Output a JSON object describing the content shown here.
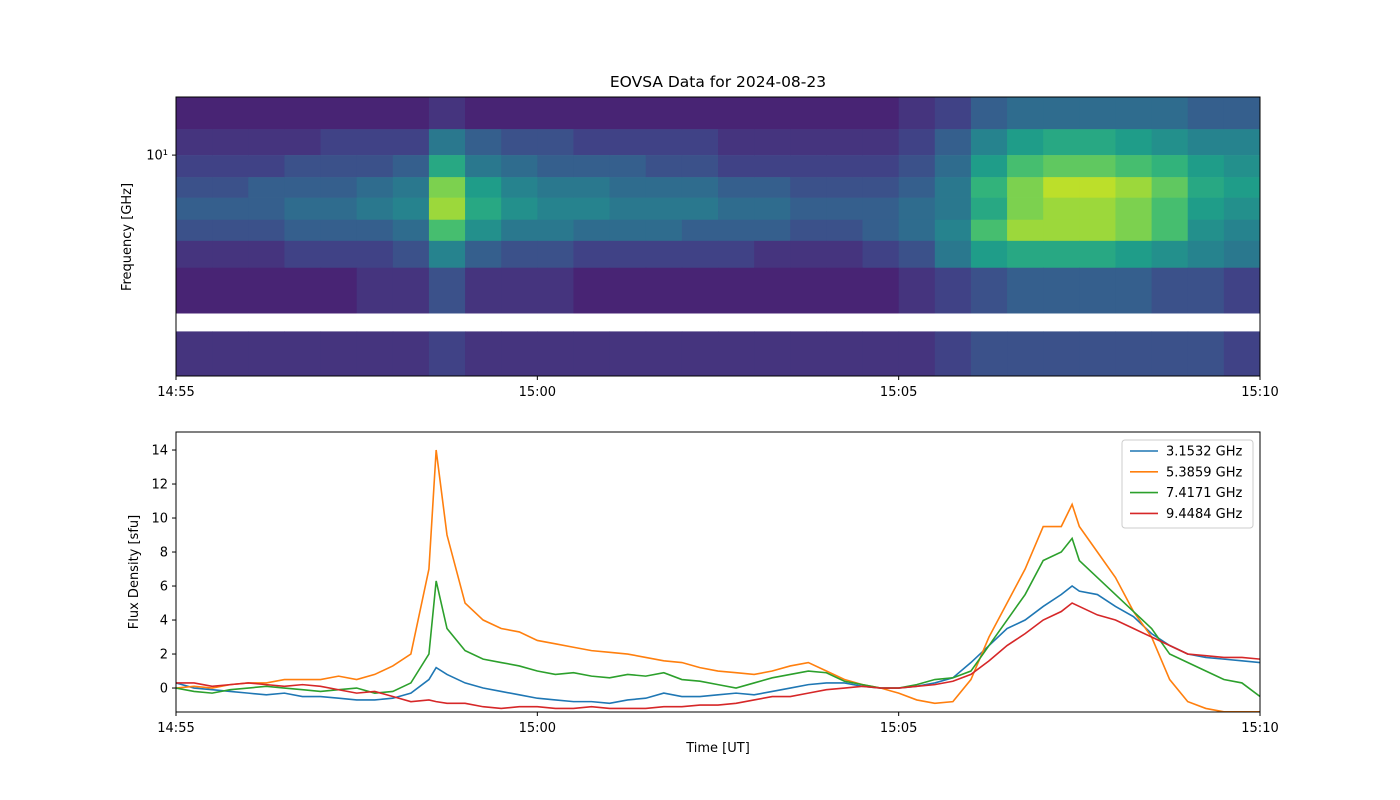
{
  "chart_data": [
    {
      "type": "heatmap",
      "title": "EOVSA Data for 2024-08-23",
      "ylabel": "Frequency [GHz]",
      "yscale": "log",
      "colormap": "viridis",
      "xlim": [
        895,
        910
      ],
      "ylim": [
        1.07,
        18
      ],
      "xticks": [
        {
          "value": 895,
          "label": "14:55"
        },
        {
          "value": 900,
          "label": "15:00"
        },
        {
          "value": 905,
          "label": "15:05"
        },
        {
          "value": 910,
          "label": "15:10"
        }
      ],
      "yticks": [
        {
          "value": 10,
          "label": "10¹"
        }
      ],
      "x": [
        895,
        895.5,
        896,
        896.5,
        897,
        897.5,
        898,
        898.5,
        899,
        899.5,
        900,
        900.5,
        901,
        901.5,
        902,
        902.5,
        903,
        903.5,
        904,
        904.5,
        905,
        905.5,
        906,
        906.5,
        907,
        907.5,
        908,
        908.5,
        909,
        909.5,
        910
      ],
      "y": [
        18,
        13,
        10,
        8,
        6.5,
        5.2,
        4.2,
        3.2,
        2.02,
        1.68,
        1.07
      ],
      "z": [
        [
          0.1,
          0.1,
          0.1,
          0.1,
          0.1,
          0.1,
          0.1,
          0.15,
          0.1,
          0.1,
          0.1,
          0.1,
          0.1,
          0.1,
          0.1,
          0.1,
          0.1,
          0.1,
          0.1,
          0.1,
          0.15,
          0.2,
          0.3,
          0.35,
          0.35,
          0.35,
          0.35,
          0.35,
          0.3,
          0.3
        ],
        [
          0.15,
          0.15,
          0.15,
          0.15,
          0.2,
          0.2,
          0.2,
          0.4,
          0.3,
          0.25,
          0.25,
          0.2,
          0.2,
          0.2,
          0.2,
          0.15,
          0.15,
          0.15,
          0.15,
          0.15,
          0.2,
          0.3,
          0.45,
          0.55,
          0.6,
          0.6,
          0.55,
          0.5,
          0.45,
          0.45
        ],
        [
          0.2,
          0.2,
          0.2,
          0.25,
          0.25,
          0.25,
          0.3,
          0.6,
          0.4,
          0.35,
          0.3,
          0.3,
          0.3,
          0.25,
          0.25,
          0.2,
          0.2,
          0.2,
          0.2,
          0.2,
          0.25,
          0.35,
          0.55,
          0.7,
          0.75,
          0.75,
          0.7,
          0.65,
          0.55,
          0.5
        ],
        [
          0.25,
          0.25,
          0.3,
          0.3,
          0.3,
          0.35,
          0.4,
          0.8,
          0.55,
          0.45,
          0.4,
          0.4,
          0.35,
          0.35,
          0.35,
          0.3,
          0.3,
          0.25,
          0.25,
          0.25,
          0.3,
          0.4,
          0.65,
          0.8,
          0.9,
          0.9,
          0.85,
          0.75,
          0.6,
          0.55
        ],
        [
          0.3,
          0.3,
          0.3,
          0.35,
          0.35,
          0.4,
          0.45,
          0.85,
          0.6,
          0.5,
          0.45,
          0.45,
          0.4,
          0.4,
          0.4,
          0.35,
          0.35,
          0.3,
          0.3,
          0.3,
          0.35,
          0.4,
          0.6,
          0.8,
          0.85,
          0.85,
          0.8,
          0.7,
          0.55,
          0.5
        ],
        [
          0.25,
          0.25,
          0.25,
          0.3,
          0.3,
          0.3,
          0.35,
          0.7,
          0.5,
          0.4,
          0.4,
          0.35,
          0.35,
          0.35,
          0.3,
          0.3,
          0.3,
          0.25,
          0.25,
          0.3,
          0.35,
          0.45,
          0.7,
          0.85,
          0.85,
          0.85,
          0.8,
          0.7,
          0.5,
          0.45
        ],
        [
          0.15,
          0.15,
          0.15,
          0.2,
          0.2,
          0.2,
          0.25,
          0.45,
          0.3,
          0.25,
          0.25,
          0.2,
          0.2,
          0.2,
          0.2,
          0.2,
          0.15,
          0.15,
          0.15,
          0.2,
          0.25,
          0.4,
          0.55,
          0.6,
          0.6,
          0.6,
          0.55,
          0.5,
          0.45,
          0.4
        ],
        [
          0.1,
          0.1,
          0.1,
          0.1,
          0.1,
          0.15,
          0.15,
          0.25,
          0.15,
          0.15,
          0.15,
          0.1,
          0.1,
          0.1,
          0.1,
          0.1,
          0.1,
          0.1,
          0.1,
          0.1,
          0.15,
          0.2,
          0.25,
          0.3,
          0.3,
          0.3,
          0.3,
          0.25,
          0.25,
          0.2
        ],
        [
          null,
          null,
          null,
          null,
          null,
          null,
          null,
          null,
          null,
          null,
          null,
          null,
          null,
          null,
          null,
          null,
          null,
          null,
          null,
          null,
          null,
          null,
          null,
          null,
          null,
          null,
          null,
          null,
          null,
          null
        ],
        [
          0.15,
          0.15,
          0.15,
          0.15,
          0.15,
          0.15,
          0.15,
          0.2,
          0.15,
          0.15,
          0.15,
          0.15,
          0.15,
          0.15,
          0.15,
          0.15,
          0.15,
          0.15,
          0.15,
          0.15,
          0.15,
          0.2,
          0.25,
          0.25,
          0.25,
          0.25,
          0.25,
          0.25,
          0.25,
          0.2
        ]
      ]
    },
    {
      "type": "line",
      "xlabel": "Time [UT]",
      "ylabel": "Flux Density [sfu]",
      "legend": "upper right",
      "xlim": [
        895,
        910
      ],
      "ylim": [
        -1.41,
        15.06
      ],
      "xticks": [
        {
          "value": 895,
          "label": "14:55"
        },
        {
          "value": 900,
          "label": "15:00"
        },
        {
          "value": 905,
          "label": "15:05"
        },
        {
          "value": 910,
          "label": "15:10"
        }
      ],
      "yticks": [
        0,
        2,
        4,
        6,
        8,
        10,
        12,
        14
      ],
      "x": [
        895,
        895.25,
        895.5,
        895.75,
        896,
        896.25,
        896.5,
        896.75,
        897,
        897.25,
        897.5,
        897.75,
        898,
        898.25,
        898.5,
        898.6,
        898.75,
        899,
        899.25,
        899.5,
        899.75,
        900,
        900.25,
        900.5,
        900.75,
        901,
        901.25,
        901.5,
        901.75,
        902,
        902.25,
        902.5,
        902.75,
        903,
        903.25,
        903.5,
        903.75,
        904,
        904.25,
        904.5,
        904.75,
        905,
        905.25,
        905.5,
        905.75,
        906,
        906.25,
        906.5,
        906.75,
        907,
        907.25,
        907.4,
        907.5,
        907.75,
        908,
        908.25,
        908.5,
        908.75,
        909,
        909.25,
        909.5,
        909.75,
        910
      ],
      "series": [
        {
          "name": "3.1532 GHz",
          "color": "#1f77b4",
          "values": [
            0.3,
            0,
            -0.1,
            -0.2,
            -0.3,
            -0.4,
            -0.3,
            -0.5,
            -0.5,
            -0.6,
            -0.7,
            -0.7,
            -0.6,
            -0.3,
            0.5,
            1.2,
            0.8,
            0.3,
            0,
            -0.2,
            -0.4,
            -0.6,
            -0.7,
            -0.8,
            -0.8,
            -0.9,
            -0.7,
            -0.6,
            -0.3,
            -0.5,
            -0.5,
            -0.4,
            -0.3,
            -0.4,
            -0.2,
            0,
            0.2,
            0.3,
            0.3,
            0.1,
            0,
            0,
            0.1,
            0.3,
            0.6,
            1.5,
            2.5,
            3.5,
            4,
            4.8,
            5.5,
            6,
            5.7,
            5.5,
            4.8,
            4.2,
            3.2,
            2.5,
            2,
            1.8,
            1.7,
            1.6,
            1.5
          ]
        },
        {
          "name": "5.3859 GHz",
          "color": "#ff7f0e",
          "values": [
            0,
            0.1,
            0,
            0.2,
            0.3,
            0.3,
            0.5,
            0.5,
            0.5,
            0.7,
            0.5,
            0.8,
            1.3,
            2,
            7,
            14,
            9,
            5,
            4,
            3.5,
            3.3,
            2.8,
            2.6,
            2.4,
            2.2,
            2.1,
            2,
            1.8,
            1.6,
            1.5,
            1.2,
            1,
            0.9,
            0.8,
            1,
            1.3,
            1.5,
            1,
            0.5,
            0.2,
            0,
            -0.3,
            -0.7,
            -0.9,
            -0.8,
            0.5,
            3,
            5,
            7,
            9.5,
            9.5,
            10.8,
            9.5,
            8,
            6.5,
            4.5,
            3,
            0.5,
            -0.8,
            -1.2,
            -1.4,
            -1.4,
            -1.4
          ]
        },
        {
          "name": "7.4171 GHz",
          "color": "#2ca02c",
          "values": [
            0,
            -0.2,
            -0.3,
            -0.1,
            0,
            0.1,
            0,
            -0.1,
            -0.2,
            -0.1,
            0,
            -0.3,
            -0.2,
            0.3,
            2,
            6.3,
            3.5,
            2.2,
            1.7,
            1.5,
            1.3,
            1,
            0.8,
            0.9,
            0.7,
            0.6,
            0.8,
            0.7,
            0.9,
            0.5,
            0.4,
            0.2,
            0,
            0.3,
            0.6,
            0.8,
            1,
            0.9,
            0.4,
            0.2,
            0,
            0,
            0.2,
            0.5,
            0.6,
            1,
            2.5,
            4,
            5.5,
            7.5,
            8,
            8.8,
            7.5,
            6.5,
            5.5,
            4.5,
            3.5,
            2,
            1.5,
            1,
            0.5,
            0.3,
            -0.5
          ]
        },
        {
          "name": "9.4484 GHz",
          "color": "#d62728",
          "values": [
            0.3,
            0.3,
            0.1,
            0.2,
            0.3,
            0.2,
            0.1,
            0.2,
            0.1,
            -0.1,
            -0.3,
            -0.2,
            -0.5,
            -0.8,
            -0.7,
            -0.8,
            -0.9,
            -0.9,
            -1.1,
            -1.2,
            -1.1,
            -1.1,
            -1.2,
            -1.2,
            -1.1,
            -1.2,
            -1.2,
            -1.2,
            -1.1,
            -1.1,
            -1,
            -1,
            -0.9,
            -0.7,
            -0.5,
            -0.5,
            -0.3,
            -0.1,
            0,
            0.1,
            0,
            0,
            0.1,
            0.2,
            0.4,
            0.8,
            1.6,
            2.5,
            3.2,
            4,
            4.5,
            5,
            4.8,
            4.3,
            4,
            3.5,
            3,
            2.5,
            2,
            1.9,
            1.8,
            1.8,
            1.7
          ]
        }
      ]
    }
  ]
}
